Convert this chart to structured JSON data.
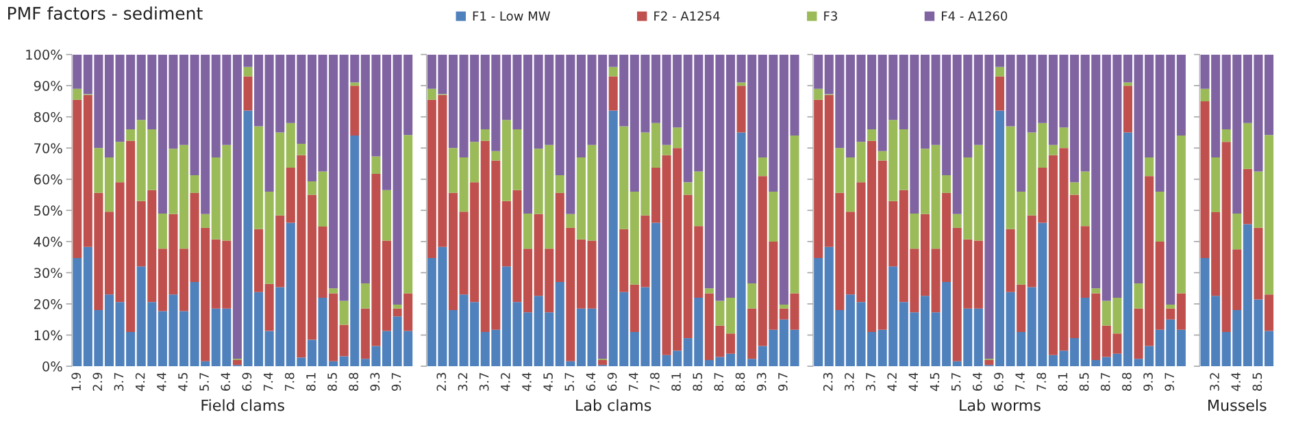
{
  "chart_data": [
    {
      "type": "bar",
      "title": "PMF factors - sediment",
      "xlabel": "Field clams",
      "stacked": true,
      "legend": "top",
      "grid": false,
      "categories": [
        "1.9",
        null,
        "2.9",
        null,
        "3.7",
        null,
        "4.2",
        null,
        "4.4",
        null,
        "4.5",
        null,
        "5.7",
        null,
        "6.4",
        null,
        "6.9",
        null,
        "7.4",
        null,
        "7.8",
        null,
        "8.1",
        null,
        "8.5",
        null,
        "8.8",
        null,
        "9.3",
        null,
        "9.7",
        null
      ],
      "ylim": [
        0,
        100
      ],
      "yticks": [
        {
          "value": 0,
          "label": "0%"
        },
        {
          "value": 10,
          "label": "10%"
        },
        {
          "value": 20,
          "label": "20%"
        },
        {
          "value": 30,
          "label": "30%"
        },
        {
          "value": 40,
          "label": "40%"
        },
        {
          "value": 50,
          "label": "50%"
        },
        {
          "value": 60,
          "label": "60%"
        },
        {
          "value": 70,
          "label": "70%"
        },
        {
          "value": 80,
          "label": "80%"
        },
        {
          "value": 90,
          "label": "90%"
        },
        {
          "value": 100,
          "label": "100%"
        }
      ],
      "series": [
        {
          "name": "F1 - Low MW",
          "color": "#4f81bd",
          "values": [
            34.7,
            38.3,
            18,
            23,
            20.6,
            11,
            32,
            20.6,
            17.7,
            23,
            17.7,
            27,
            1.6,
            18.5,
            18.5,
            0.4,
            82,
            23.8,
            11.3,
            25.4,
            46,
            2.8,
            8.5,
            22,
            1.6,
            3.2,
            74,
            2.4,
            6.5,
            11.3,
            16,
            11.3
          ]
        },
        {
          "name": "F2 - A1254",
          "color": "#c0504d",
          "values": [
            50.8,
            48.7,
            37.6,
            26.6,
            38.4,
            61.3,
            21,
            35.9,
            20,
            25.8,
            20,
            28.6,
            42.8,
            22.2,
            21.8,
            1.6,
            11,
            20.2,
            15.1,
            23,
            17.7,
            64.9,
            46.5,
            22.8,
            21.8,
            10.1,
            16,
            16.1,
            55.2,
            29,
            2.5,
            12.1
          ]
        },
        {
          "name": "F3",
          "color": "#9bbb59",
          "values": [
            3.5,
            0.3,
            14.4,
            17.4,
            13,
            3.7,
            26,
            19.5,
            11.3,
            21,
            33.3,
            5.7,
            4.4,
            26.3,
            30.7,
            0.4,
            3,
            33,
            29.6,
            26.6,
            14.3,
            3.7,
            4.3,
            17.7,
            1.6,
            7.7,
            1,
            8.1,
            5.6,
            16.2,
            1.3,
            50.8
          ]
        },
        {
          "name": "F4 - A1260",
          "color": "#8064a2",
          "values": [
            11,
            12.7,
            30,
            33,
            28,
            24,
            21,
            24,
            51,
            30.2,
            29,
            38.7,
            51.2,
            33,
            29,
            97.6,
            4,
            23,
            44,
            25,
            22,
            28.6,
            40.7,
            37.5,
            75,
            79,
            9,
            73.4,
            32.7,
            43.5,
            80.2,
            25.8
          ]
        }
      ]
    },
    {
      "type": "bar",
      "xlabel": "Lab clams",
      "stacked": true,
      "grid": false,
      "tick_labels": "x",
      "categories": [
        null,
        "2.3",
        null,
        "3.2",
        null,
        "3.7",
        null,
        "4.2",
        null,
        "4.4",
        null,
        "4.5",
        null,
        "5.7",
        null,
        "6.4",
        null,
        "6.9",
        null,
        "7.4",
        null,
        "7.8",
        null,
        "8.1",
        null,
        "8.5",
        null,
        "8.7",
        null,
        "8.8",
        null,
        "9.3",
        null,
        "9.7",
        null
      ],
      "ylim": [
        0,
        100
      ],
      "yticks": [
        0,
        10,
        20,
        30,
        40,
        50,
        60,
        70,
        80,
        90,
        100
      ],
      "series": [
        {
          "color": "#4f81bd",
          "values": [
            34.7,
            38.3,
            18,
            23,
            20.6,
            11,
            11.7,
            32,
            20.6,
            17.3,
            22.6,
            17.3,
            27,
            1.6,
            18.5,
            18.5,
            0.4,
            82,
            23.8,
            11,
            25.4,
            46,
            3.6,
            5,
            9,
            22,
            2,
            3,
            4,
            75,
            2.4,
            6.5,
            11.7,
            15,
            11.7
          ]
        },
        {
          "color": "#c0504d",
          "values": [
            50.8,
            48.7,
            37.6,
            26.6,
            38.4,
            61.3,
            54.3,
            21,
            35.9,
            20.4,
            26.2,
            20.4,
            28.6,
            42.8,
            22.2,
            21.8,
            1.6,
            11,
            20.2,
            15.2,
            23,
            17.7,
            64.1,
            65,
            46,
            23,
            21.4,
            10,
            6.5,
            15,
            16.1,
            54.5,
            28.3,
            3.5,
            11.7
          ]
        },
        {
          "color": "#9bbb59",
          "values": [
            3.5,
            0.3,
            14.4,
            17.4,
            13,
            3.7,
            3,
            26,
            19.5,
            11.3,
            21,
            33.3,
            5.7,
            4.4,
            26.3,
            30.7,
            0.4,
            3,
            33,
            29.8,
            26.6,
            14.3,
            3.3,
            6.6,
            4,
            17.5,
            1.6,
            8,
            11.5,
            1,
            8.1,
            6,
            16,
            1.3,
            50.6
          ]
        },
        {
          "color": "#8064a2",
          "values": [
            11,
            12.7,
            30,
            33,
            28,
            24,
            31,
            21,
            24,
            51,
            30.2,
            29,
            38.7,
            51.2,
            33,
            29,
            97.6,
            4,
            23,
            44,
            25,
            22,
            29,
            23.4,
            41,
            37.5,
            75,
            79,
            78,
            9,
            73.4,
            33,
            44,
            80.2,
            26
          ]
        }
      ]
    },
    {
      "type": "bar",
      "xlabel": "Lab worms",
      "stacked": true,
      "grid": false,
      "tick_labels": "x",
      "categories": [
        null,
        "2.3",
        null,
        "3.2",
        null,
        "3.7",
        null,
        "4.2",
        null,
        "4.4",
        null,
        "4.5",
        null,
        "5.7",
        null,
        "6.4",
        null,
        "6.9",
        null,
        "7.4",
        null,
        "7.8",
        null,
        "8.1",
        null,
        "8.5",
        null,
        "8.7",
        null,
        "8.8",
        null,
        "9.3",
        null,
        "9.7",
        null
      ],
      "ylim": [
        0,
        100
      ],
      "yticks": [
        0,
        10,
        20,
        30,
        40,
        50,
        60,
        70,
        80,
        90,
        100
      ],
      "series": [
        {
          "color": "#4f81bd",
          "values": [
            34.7,
            38.3,
            18,
            23,
            20.6,
            11,
            11.7,
            32,
            20.6,
            17.3,
            22.6,
            17.3,
            27,
            1.6,
            18.5,
            18.5,
            0.4,
            82,
            23.8,
            11,
            25.4,
            46,
            3.6,
            5,
            9,
            22,
            2,
            3,
            4,
            75,
            2.4,
            6.5,
            11.7,
            15,
            11.7
          ]
        },
        {
          "color": "#c0504d",
          "values": [
            50.8,
            48.7,
            37.6,
            26.6,
            38.4,
            61.3,
            54.3,
            21,
            35.9,
            20.4,
            26.2,
            20.4,
            28.6,
            42.8,
            22.2,
            21.8,
            1.6,
            11,
            20.2,
            15.2,
            23,
            17.7,
            64.1,
            65,
            46,
            23,
            21.4,
            10,
            6.5,
            15,
            16.1,
            54.5,
            28.3,
            3.5,
            11.7
          ]
        },
        {
          "color": "#9bbb59",
          "values": [
            3.5,
            0.3,
            14.4,
            17.4,
            13,
            3.7,
            3,
            26,
            19.5,
            11.3,
            21,
            33.3,
            5.7,
            4.4,
            26.3,
            30.7,
            0.4,
            3,
            33,
            29.8,
            26.6,
            14.3,
            3.3,
            6.6,
            4,
            17.5,
            1.6,
            8,
            11.5,
            1,
            8.1,
            6,
            16,
            1.3,
            50.6
          ]
        },
        {
          "color": "#8064a2",
          "values": [
            11,
            12.7,
            30,
            33,
            28,
            24,
            31,
            21,
            24,
            51,
            30.2,
            29,
            38.7,
            51.2,
            33,
            29,
            97.6,
            4,
            23,
            44,
            25,
            22,
            29,
            23.4,
            41,
            37.5,
            75,
            79,
            78,
            9,
            73.4,
            33,
            44,
            80.2,
            26
          ]
        }
      ]
    },
    {
      "type": "bar",
      "xlabel": "Mussels",
      "stacked": true,
      "grid": false,
      "tick_labels": "x",
      "categories": [
        null,
        "3.2",
        null,
        "4.4",
        null,
        "8.5",
        null
      ],
      "ylim": [
        0,
        100
      ],
      "yticks": [
        0,
        10,
        20,
        30,
        40,
        50,
        60,
        70,
        80,
        90,
        100
      ],
      "series": [
        {
          "color": "#4f81bd",
          "values": [
            34.7,
            22.6,
            11,
            18,
            45.6,
            21.4,
            11.3
          ]
        },
        {
          "color": "#c0504d",
          "values": [
            50.3,
            26.8,
            61,
            19.5,
            17.7,
            23,
            11.7
          ]
        },
        {
          "color": "#9bbb59",
          "values": [
            4,
            17.6,
            4,
            11.5,
            14.7,
            18.1,
            51.2
          ]
        },
        {
          "color": "#8064a2",
          "values": [
            11,
            33,
            24,
            51,
            22,
            37.5,
            25.8
          ]
        }
      ]
    }
  ]
}
